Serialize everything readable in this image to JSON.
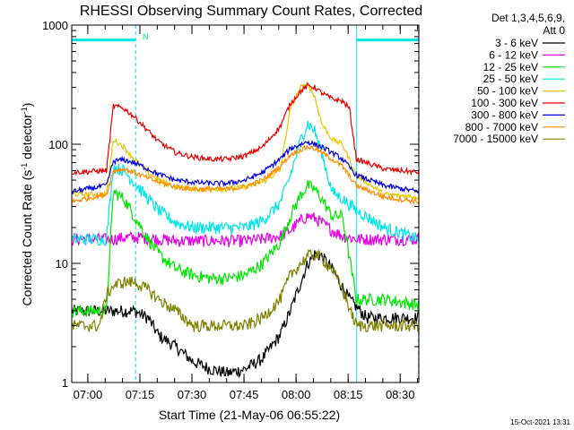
{
  "chart_data": {
    "type": "line",
    "title": "RHESSI Observing Summary Count Rates, Corrected",
    "ylabel_parts": [
      "Corrected Count Rate (s",
      "-1",
      " detector",
      "-1",
      ")"
    ],
    "xlabel": "Start Time (21-May-06 06:55:22)",
    "y_scale": "log",
    "ylim": [
      1,
      1000
    ],
    "y_ticks": [
      1,
      10,
      100,
      1000
    ],
    "y_tick_labels": [
      "1",
      "10",
      "100",
      "1000"
    ],
    "x_range_minutes": [
      0,
      100
    ],
    "x_ticks": [
      4.63,
      19.63,
      34.63,
      49.63,
      64.63,
      79.63,
      94.63
    ],
    "x_tick_labels": [
      "07:00",
      "07:15",
      "07:30",
      "07:45",
      "08:00",
      "08:15",
      "08:30"
    ],
    "legend_title": [
      "Det 1,3,4,5,6,9,",
      "Att 0"
    ],
    "timestamp": "15-Oct-2021 13:31",
    "night_flag": "N",
    "series": [
      {
        "name": "3 - 6 keV",
        "color": "#000000",
        "x": [
          0,
          10,
          12,
          15,
          18,
          22,
          25,
          30,
          35,
          40,
          45,
          50,
          55,
          60,
          63,
          66,
          68,
          70,
          72,
          75,
          80,
          85,
          90,
          95,
          100
        ],
        "y": [
          4,
          4,
          4,
          4,
          4,
          3.5,
          2.5,
          2,
          1.5,
          1.3,
          1.2,
          1.3,
          1.6,
          2.5,
          4,
          7,
          10,
          12,
          11.5,
          9,
          5,
          3.5,
          3.5,
          3.5,
          3.5
        ]
      },
      {
        "name": "6 - 12 keV",
        "color": "#e600e6",
        "x": [
          0,
          10,
          12,
          15,
          20,
          25,
          30,
          35,
          40,
          45,
          50,
          55,
          60,
          63,
          66,
          68,
          70,
          72,
          75,
          78,
          82,
          90,
          100
        ],
        "y": [
          16,
          16,
          16,
          16.5,
          16.5,
          16,
          15.5,
          15.5,
          15.5,
          15.5,
          15.5,
          16,
          17,
          19,
          23,
          25,
          24,
          22,
          19,
          17,
          16,
          16,
          16
        ]
      },
      {
        "name": "12 - 25 keV",
        "color": "#00e600",
        "x": [
          0,
          10,
          12,
          15,
          18,
          22,
          25,
          30,
          35,
          40,
          45,
          50,
          55,
          60,
          63,
          66,
          68,
          70,
          72,
          75,
          78,
          82,
          90,
          100
        ],
        "y": [
          4,
          4,
          40,
          35,
          25,
          16,
          12,
          9,
          8,
          7.5,
          7.5,
          8,
          10,
          15,
          25,
          38,
          45,
          42,
          35,
          25,
          25,
          5,
          5,
          4.5
        ]
      },
      {
        "name": "25 - 50 keV",
        "color": "#00e6e6",
        "x": [
          0,
          10,
          12,
          15,
          18,
          22,
          25,
          30,
          35,
          40,
          45,
          50,
          55,
          60,
          63,
          66,
          68,
          70,
          72,
          75,
          78,
          82,
          90,
          100
        ],
        "y": [
          16,
          16,
          65,
          60,
          48,
          35,
          28,
          22,
          20,
          20,
          20,
          20,
          23,
          32,
          55,
          110,
          150,
          130,
          85,
          40,
          35,
          28,
          20,
          16
        ]
      },
      {
        "name": "50 - 100 keV",
        "color": "#e6c800",
        "x": [
          0,
          10,
          12,
          15,
          18,
          22,
          25,
          30,
          35,
          40,
          45,
          50,
          55,
          60,
          63,
          66,
          68,
          70,
          72,
          75,
          78,
          82,
          90,
          100
        ],
        "y": [
          38,
          38,
          110,
          95,
          75,
          58,
          50,
          44,
          42,
          42,
          42,
          44,
          48,
          60,
          200,
          300,
          320,
          250,
          150,
          110,
          100,
          55,
          38,
          36
        ]
      },
      {
        "name": "100 - 300 keV",
        "color": "#e60000",
        "x": [
          0,
          10,
          12,
          15,
          18,
          22,
          25,
          30,
          35,
          40,
          45,
          50,
          55,
          60,
          63,
          66,
          68,
          70,
          72,
          75,
          78,
          80,
          82,
          90,
          100
        ],
        "y": [
          58,
          60,
          210,
          200,
          170,
          130,
          105,
          85,
          78,
          75,
          75,
          80,
          95,
          140,
          220,
          280,
          310,
          300,
          270,
          240,
          230,
          200,
          75,
          62,
          58
        ]
      },
      {
        "name": "300 - 800 keV",
        "color": "#0000e6",
        "x": [
          0,
          10,
          12,
          15,
          18,
          22,
          25,
          30,
          35,
          40,
          45,
          50,
          55,
          60,
          63,
          66,
          68,
          70,
          72,
          75,
          78,
          82,
          90,
          100
        ],
        "y": [
          40,
          45,
          72,
          74,
          70,
          62,
          56,
          50,
          48,
          47,
          47,
          50,
          58,
          75,
          92,
          100,
          105,
          100,
          95,
          85,
          75,
          55,
          45,
          40
        ]
      },
      {
        "name": "800 - 7000 keV",
        "color": "#ff8c00",
        "x": [
          0,
          10,
          12,
          15,
          18,
          22,
          25,
          30,
          35,
          40,
          45,
          50,
          55,
          60,
          63,
          66,
          68,
          70,
          72,
          75,
          78,
          82,
          90,
          100
        ],
        "y": [
          33,
          38,
          60,
          62,
          58,
          52,
          48,
          44,
          42,
          42,
          42,
          44,
          50,
          65,
          82,
          90,
          95,
          92,
          85,
          75,
          65,
          45,
          36,
          33
        ]
      },
      {
        "name": "7000 - 15000 keV",
        "color": "#808000",
        "x": [
          0,
          8,
          10,
          12,
          15,
          18,
          22,
          25,
          30,
          35,
          40,
          45,
          50,
          55,
          60,
          63,
          66,
          68,
          70,
          72,
          75,
          78,
          82,
          90,
          100
        ],
        "y": [
          3,
          3,
          5.5,
          6.5,
          7,
          7,
          6,
          5,
          4,
          3,
          3,
          3,
          3,
          3.5,
          5,
          8,
          10,
          11.5,
          12,
          11,
          9,
          6,
          3,
          3,
          3
        ]
      }
    ],
    "markers": [
      {
        "kind": "vline",
        "x": 0,
        "style": "solid",
        "color": "#00e6e6"
      },
      {
        "kind": "vline",
        "x": 18.4,
        "style": "dashed",
        "color": "#00e6e6"
      },
      {
        "kind": "vline",
        "x": 82.1,
        "style": "solid",
        "color": "#00e6e6"
      },
      {
        "kind": "vline",
        "x": 99.9,
        "style": "dashed",
        "color": "#00e6e6"
      },
      {
        "kind": "hbar",
        "x1": 0,
        "x2": 18.4,
        "y": 750,
        "color": "#00e6e6"
      },
      {
        "kind": "hbar",
        "x1": 82.1,
        "x2": 99.9,
        "y": 750,
        "color": "#00e6e6"
      }
    ]
  }
}
